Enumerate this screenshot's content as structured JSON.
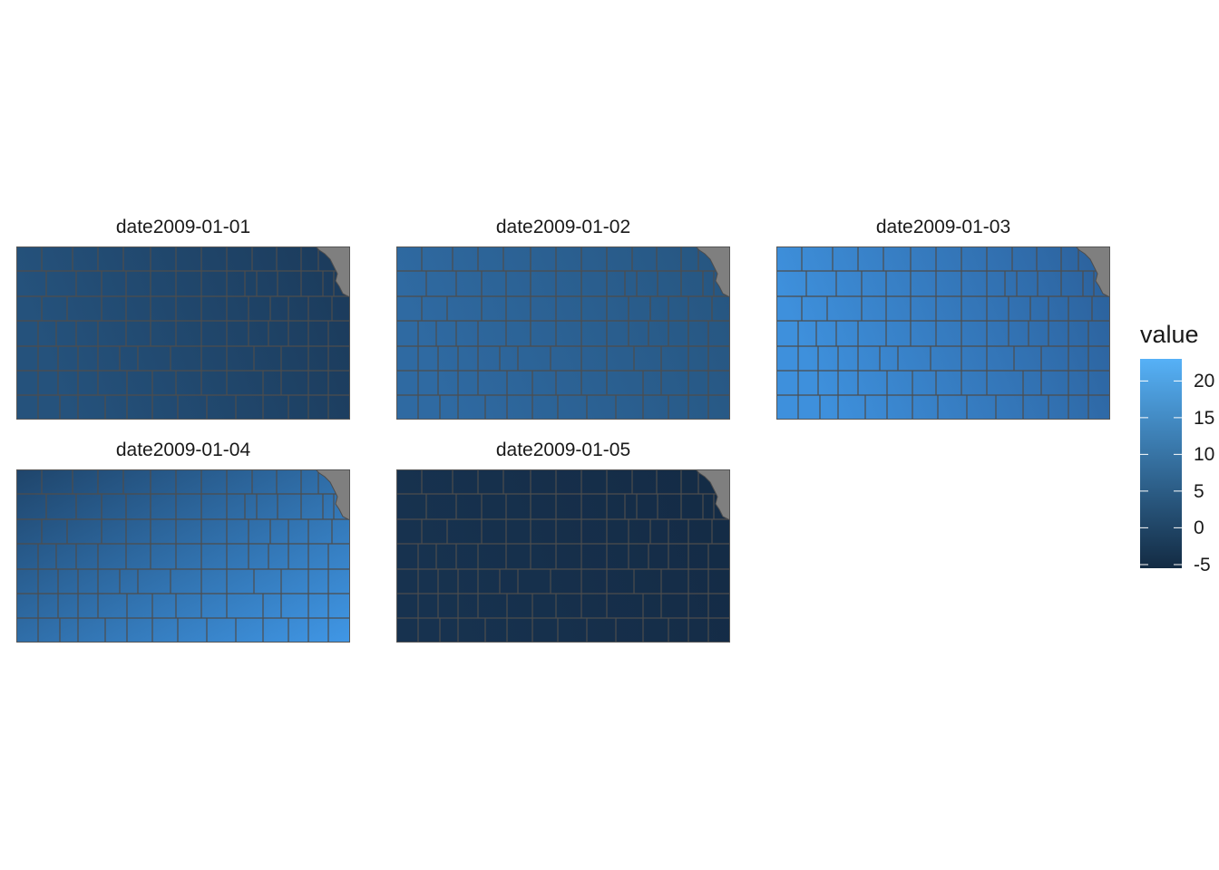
{
  "colors": {
    "low": "#132B43",
    "high": "#56B1F7",
    "border": "#4d4d4d",
    "na": "#7f7f7f"
  },
  "panels": [
    {
      "title": "date2009-01-01",
      "west": "#25527c",
      "east": "#1b3a5a"
    },
    {
      "title": "date2009-01-02",
      "west": "#2f6aa2",
      "east": "#26557f"
    },
    {
      "title": "date2009-01-03",
      "west": "#3e90dc",
      "east": "#2b609a"
    },
    {
      "title": "date2009-01-04",
      "west": "#1f456b",
      "east": "#4097e6"
    },
    {
      "title": "date2009-01-05",
      "west": "#17324f",
      "east": "#142b45"
    }
  ],
  "legend": {
    "title": "value",
    "min": -5.5,
    "max": 23,
    "ticks": [
      "20",
      "15",
      "10",
      "5",
      "0",
      "-5"
    ],
    "tick_values": [
      20,
      15,
      10,
      5,
      0,
      -5
    ]
  }
}
